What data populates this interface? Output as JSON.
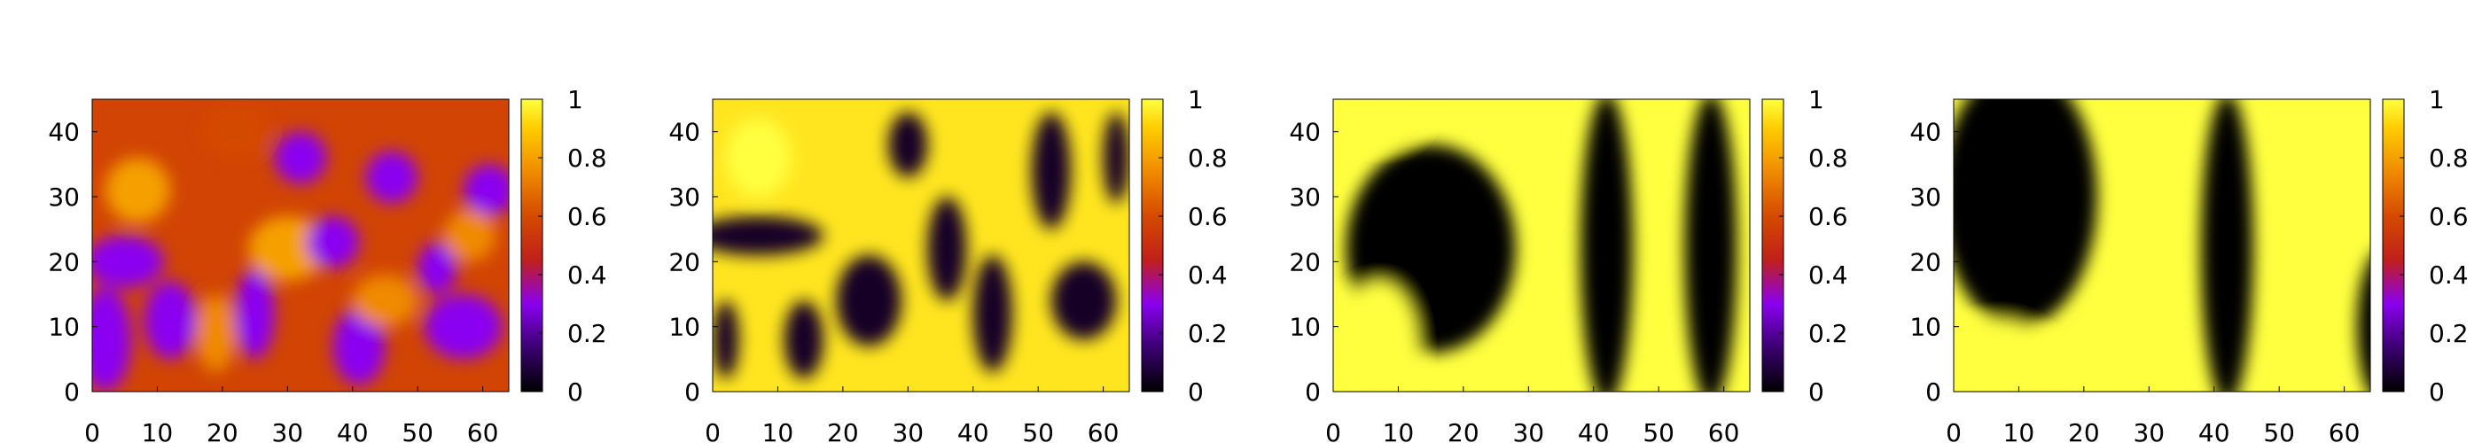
{
  "chart_data": [
    {
      "type": "heatmap",
      "title": "",
      "xlabel": "",
      "ylabel": "",
      "xlim": [
        0,
        64
      ],
      "ylim": [
        0,
        45
      ],
      "x_ticks": [
        "0",
        "10",
        "20",
        "30",
        "40",
        "50",
        "60"
      ],
      "y_ticks": [
        "0",
        "10",
        "20",
        "30",
        "40"
      ],
      "colorbar": {
        "range": [
          0,
          1
        ],
        "ticks": [
          "0",
          "0.2",
          "0.4",
          "0.6",
          "0.8",
          "1"
        ],
        "palette": "black-purple-red-orange-yellow"
      },
      "background_level": 0.58,
      "blobs": [
        {
          "x": 7,
          "y": 31,
          "rx": 5,
          "ry": 5,
          "value": 0.8
        },
        {
          "x": 5,
          "y": 20,
          "rx": 6,
          "ry": 4,
          "value": 0.3
        },
        {
          "x": 2,
          "y": 8,
          "rx": 4,
          "ry": 8,
          "value": 0.3
        },
        {
          "x": 12,
          "y": 11,
          "rx": 4,
          "ry": 6,
          "value": 0.3
        },
        {
          "x": 19,
          "y": 9,
          "rx": 3,
          "ry": 6,
          "value": 0.75
        },
        {
          "x": 25,
          "y": 12,
          "rx": 3,
          "ry": 7,
          "value": 0.3
        },
        {
          "x": 32,
          "y": 36,
          "rx": 4,
          "ry": 4,
          "value": 0.3
        },
        {
          "x": 30,
          "y": 22,
          "rx": 6,
          "ry": 5,
          "value": 0.8
        },
        {
          "x": 37,
          "y": 23,
          "rx": 4,
          "ry": 4,
          "value": 0.3
        },
        {
          "x": 41,
          "y": 7,
          "rx": 4,
          "ry": 6,
          "value": 0.3
        },
        {
          "x": 46,
          "y": 33,
          "rx": 4,
          "ry": 4,
          "value": 0.3
        },
        {
          "x": 53,
          "y": 19,
          "rx": 3,
          "ry": 4,
          "value": 0.3
        },
        {
          "x": 57,
          "y": 10,
          "rx": 6,
          "ry": 5,
          "value": 0.3
        },
        {
          "x": 61,
          "y": 31,
          "rx": 4,
          "ry": 4,
          "value": 0.3
        },
        {
          "x": 45,
          "y": 14,
          "rx": 5,
          "ry": 4,
          "value": 0.75
        },
        {
          "x": 58,
          "y": 24,
          "rx": 4,
          "ry": 4,
          "value": 0.75
        },
        {
          "x": 22,
          "y": 40,
          "rx": 5,
          "ry": 4,
          "value": 0.6
        }
      ]
    },
    {
      "type": "heatmap",
      "title": "",
      "xlabel": "",
      "ylabel": "",
      "xlim": [
        0,
        64
      ],
      "ylim": [
        0,
        45
      ],
      "x_ticks": [
        "0",
        "10",
        "20",
        "30",
        "40",
        "50",
        "60"
      ],
      "y_ticks": [
        "0",
        "10",
        "20",
        "30",
        "40"
      ],
      "colorbar": {
        "range": [
          0,
          1
        ],
        "ticks": [
          "0",
          "0.2",
          "0.4",
          "0.6",
          "0.8",
          "1"
        ],
        "palette": "black-purple-red-orange-yellow"
      },
      "background_level": 0.95,
      "blobs": [
        {
          "x": 7,
          "y": 36,
          "rx": 5,
          "ry": 6,
          "value": 1.0
        },
        {
          "x": 7,
          "y": 24,
          "rx": 10,
          "ry": 3,
          "value": 0.05
        },
        {
          "x": 30,
          "y": 38,
          "rx": 3,
          "ry": 5,
          "value": 0.05
        },
        {
          "x": 24,
          "y": 14,
          "rx": 5,
          "ry": 7,
          "value": 0.05
        },
        {
          "x": 14,
          "y": 8,
          "rx": 3,
          "ry": 6,
          "value": 0.05
        },
        {
          "x": 2,
          "y": 8,
          "rx": 2,
          "ry": 6,
          "value": 0.05
        },
        {
          "x": 36,
          "y": 22,
          "rx": 3,
          "ry": 8,
          "value": 0.05
        },
        {
          "x": 43,
          "y": 12,
          "rx": 3,
          "ry": 9,
          "value": 0.05
        },
        {
          "x": 52,
          "y": 34,
          "rx": 3,
          "ry": 9,
          "value": 0.05
        },
        {
          "x": 57,
          "y": 14,
          "rx": 5,
          "ry": 6,
          "value": 0.05
        },
        {
          "x": 62,
          "y": 36,
          "rx": 2,
          "ry": 7,
          "value": 0.05
        }
      ]
    },
    {
      "type": "heatmap",
      "title": "",
      "xlabel": "",
      "ylabel": "",
      "xlim": [
        0,
        64
      ],
      "ylim": [
        0,
        45
      ],
      "x_ticks": [
        "0",
        "10",
        "20",
        "30",
        "40",
        "50",
        "60"
      ],
      "y_ticks": [
        "0",
        "10",
        "20",
        "30",
        "40"
      ],
      "colorbar": {
        "range": [
          0,
          1
        ],
        "ticks": [
          "0",
          "0.2",
          "0.4",
          "0.6",
          "0.8",
          "1"
        ],
        "palette": "black-purple-red-orange-yellow"
      },
      "background_level": 1.0,
      "blobs": [
        {
          "x": 15,
          "y": 22,
          "rx": 13,
          "ry": 16,
          "value": 0.0
        },
        {
          "x": 7,
          "y": 7,
          "rx": 6,
          "ry": 10,
          "value": 1.0
        },
        {
          "x": 8,
          "y": 44,
          "rx": 6,
          "ry": 6,
          "value": 1.0
        },
        {
          "x": 42,
          "y": 22,
          "rx": 4,
          "ry": 24,
          "value": 0.0
        },
        {
          "x": 58,
          "y": 22,
          "rx": 4,
          "ry": 24,
          "value": 0.0
        }
      ]
    },
    {
      "type": "heatmap",
      "title": "",
      "xlabel": "",
      "ylabel": "",
      "xlim": [
        0,
        64
      ],
      "ylim": [
        0,
        45
      ],
      "x_ticks": [
        "0",
        "10",
        "20",
        "30",
        "40",
        "50",
        "60"
      ],
      "y_ticks": [
        "0",
        "10",
        "20",
        "30",
        "40"
      ],
      "colorbar": {
        "range": [
          0,
          1
        ],
        "ticks": [
          "0",
          "0.2",
          "0.4",
          "0.6",
          "0.8",
          "1"
        ],
        "palette": "black-purple-red-orange-yellow"
      },
      "background_level": 1.0,
      "blobs": [
        {
          "x": 10,
          "y": 30,
          "rx": 12,
          "ry": 20,
          "value": 0.0
        },
        {
          "x": 7,
          "y": 2,
          "rx": 9,
          "ry": 9,
          "value": 1.0
        },
        {
          "x": 42,
          "y": 22,
          "rx": 4,
          "ry": 24,
          "value": 0.0
        },
        {
          "x": 66,
          "y": 10,
          "rx": 4,
          "ry": 12,
          "value": 0.0
        }
      ]
    }
  ]
}
